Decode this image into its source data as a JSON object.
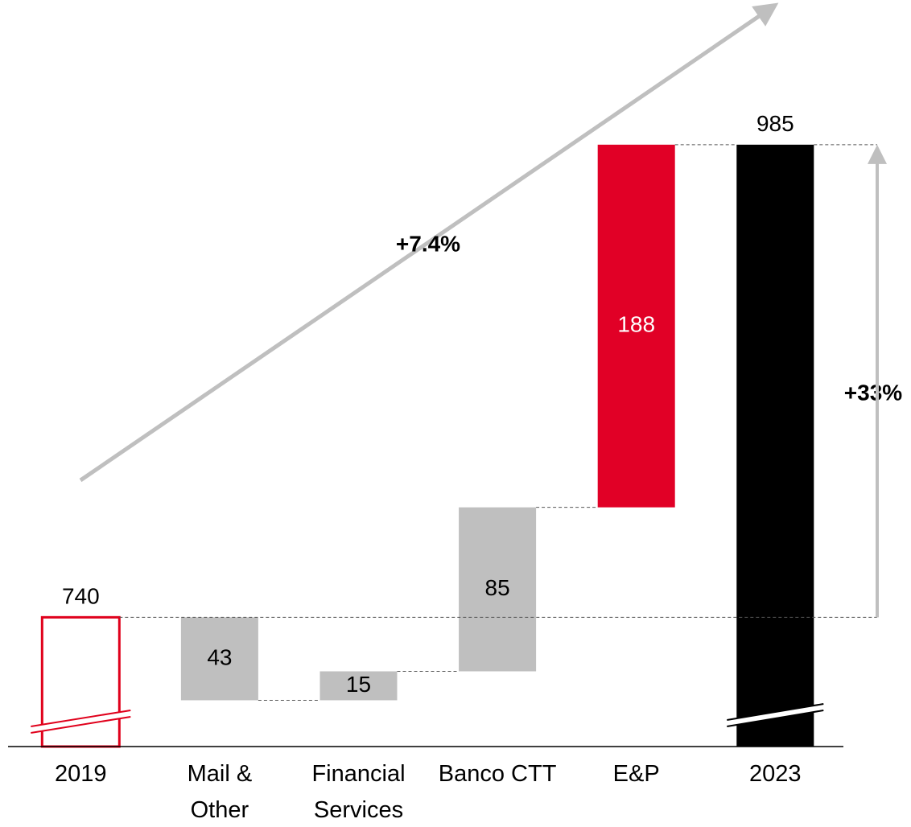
{
  "chart_data": {
    "type": "waterfall",
    "categories": [
      "2019",
      "Mail &\nOther",
      "Financial\nServices",
      "Banco CTT",
      "E&P",
      "2023"
    ],
    "values": [
      740,
      -43,
      15,
      85,
      188,
      985
    ],
    "value_labels": [
      "740",
      "43",
      "15",
      "85",
      "188",
      "985"
    ],
    "measure": [
      "total",
      "relative",
      "relative",
      "relative",
      "relative",
      "total"
    ],
    "colors": [
      "#e0001b",
      "#bfbfbf",
      "#bfbfbf",
      "#bfbfbf",
      "#e10026",
      "#000000"
    ],
    "ylim": [
      673,
      1060
    ],
    "annotations": [
      "+7.4%",
      "+33%"
    ]
  }
}
